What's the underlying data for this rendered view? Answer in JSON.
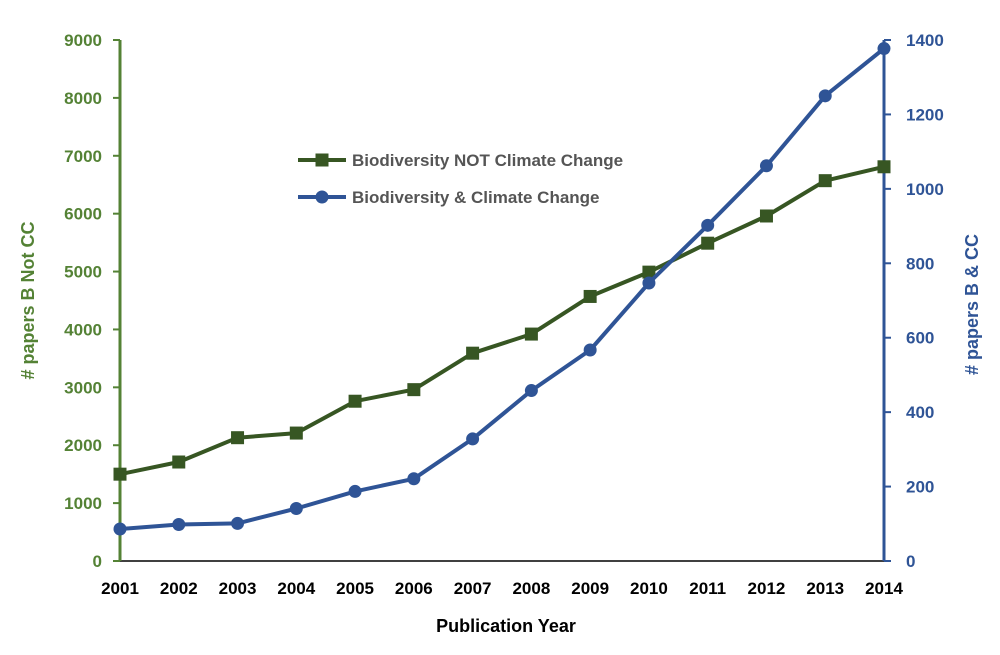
{
  "chart_data": {
    "type": "line",
    "title": "",
    "xlabel": "Publication Year",
    "ylabel_left": "# papers B Not CC",
    "ylabel_right": "# papers B & CC",
    "x": [
      "2001",
      "2002",
      "2003",
      "2004",
      "2005",
      "2006",
      "2007",
      "2008",
      "2009",
      "2010",
      "2011",
      "2012",
      "2013",
      "2014"
    ],
    "ylim_left": [
      0,
      9000
    ],
    "yticks_left": [
      "0",
      "1000",
      "2000",
      "3000",
      "4000",
      "5000",
      "6000",
      "7000",
      "8000",
      "9000"
    ],
    "ylim_right": [
      0,
      1400
    ],
    "yticks_right": [
      "0",
      "200",
      "400",
      "600",
      "800",
      "1000",
      "1200",
      "1400"
    ],
    "grid": false,
    "legend_position": "upper-center",
    "series": [
      {
        "name": "Biodiversity NOT Climate Change",
        "axis": "left",
        "marker": "square",
        "color": "#375623",
        "values": [
          1500,
          1710,
          2130,
          2210,
          2760,
          2960,
          3590,
          3920,
          4570,
          4990,
          5490,
          5960,
          6570,
          6810
        ]
      },
      {
        "name": "Biodiversity & Climate Change",
        "axis": "right",
        "marker": "circle",
        "color": "#2F5496",
        "values": [
          86,
          98,
          101,
          141,
          187,
          221,
          328,
          458,
          567,
          747,
          902,
          1062,
          1250,
          1377
        ]
      }
    ],
    "left_axis_color": "#548235",
    "right_axis_color": "#2F5496",
    "bottom_axis_color": "#000000"
  }
}
